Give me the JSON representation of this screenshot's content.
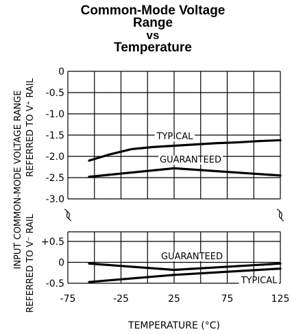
{
  "chart_data": {
    "type": "line",
    "title_lines": [
      "Common-Mode Voltage",
      "Range",
      "vs",
      "Temperature"
    ],
    "xlabel": "TEMPERATURE (°C)",
    "ylabel_lines": [
      "INPUT COMMON-MODE VOLTAGE RANGE",
      "REFERRED TO V⁺ RAIL",
      "REFERRED TO V⁻ RAIL"
    ],
    "x_ticks": [
      "-75",
      "-25",
      "25",
      "75",
      "125"
    ],
    "xlim": [
      -75,
      125
    ],
    "upper_panel": {
      "ylim": [
        -3.0,
        0
      ],
      "y_ticks": [
        "0",
        "-0.5",
        "-1.0",
        "-1.5",
        "-2.0",
        "-2.5",
        "-3.0"
      ],
      "series": [
        {
          "name": "TYPICAL",
          "x": [
            -55,
            -35,
            -15,
            5,
            25,
            45,
            65,
            85,
            105,
            125
          ],
          "y": [
            -2.1,
            -1.95,
            -1.83,
            -1.78,
            -1.75,
            -1.72,
            -1.69,
            -1.67,
            -1.64,
            -1.62
          ]
        },
        {
          "name": "GUARANTEED",
          "x": [
            -55,
            25,
            125
          ],
          "y": [
            -2.48,
            -2.28,
            -2.45
          ]
        }
      ]
    },
    "lower_panel": {
      "ylim": [
        -0.5,
        0.5
      ],
      "y_ticks": [
        "+0.5",
        "0",
        "-0.5"
      ],
      "series": [
        {
          "name": "GUARANTEED",
          "x": [
            -55,
            25,
            125
          ],
          "y": [
            -0.03,
            -0.18,
            -0.03
          ]
        },
        {
          "name": "TYPICAL",
          "x": [
            -55,
            25,
            125
          ],
          "y": [
            -0.47,
            -0.3,
            -0.15
          ]
        }
      ]
    },
    "grid": true
  }
}
